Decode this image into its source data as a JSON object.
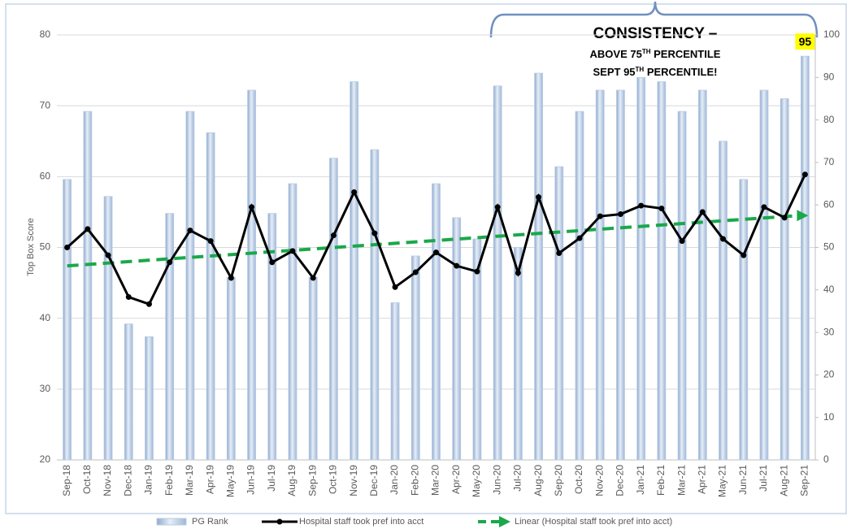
{
  "chart_data": {
    "type": "bar",
    "y_label": "Top Box Score",
    "categories": [
      "Sep-18",
      "Oct-18",
      "Nov-18",
      "Dec-18",
      "Jan-19",
      "Feb-19",
      "Mar-19",
      "Apr-19",
      "May-19",
      "Jun-19",
      "Jul-19",
      "Aug-19",
      "Sep-19",
      "Oct-19",
      "Nov-19",
      "Dec-19",
      "Jan-20",
      "Feb-20",
      "Mar-20",
      "Apr-20",
      "May-20",
      "Jun-20",
      "Jul-20",
      "Aug-20",
      "Sep-20",
      "Oct-20",
      "Nov-20",
      "Dec-20",
      "Jan-21",
      "Feb-21",
      "Mar-21",
      "Apr-21",
      "May-21",
      "Jun-21",
      "Jul-21",
      "Aug-21",
      "Sep-21"
    ],
    "series": [
      {
        "name": "PG Rank",
        "type": "bar",
        "axis": "y2",
        "color": "#b8cce4",
        "values": [
          66,
          82,
          62,
          32,
          29,
          58,
          82,
          77,
          43,
          87,
          58,
          65,
          43,
          71,
          89,
          73,
          37,
          48,
          65,
          57,
          52,
          88,
          50,
          91,
          69,
          82,
          87,
          87,
          90,
          89,
          82,
          87,
          75,
          66,
          87,
          85,
          95
        ]
      },
      {
        "name": "Hospital staff took pref into acct",
        "type": "line",
        "color": "#000000",
        "values": [
          50.0,
          52.6,
          48.9,
          43.0,
          42.0,
          47.9,
          52.4,
          50.9,
          45.7,
          55.7,
          47.9,
          49.5,
          45.7,
          51.7,
          57.8,
          52.0,
          44.4,
          46.5,
          49.3,
          47.4,
          46.6,
          55.7,
          46.4,
          57.1,
          49.2,
          51.3,
          54.4,
          54.7,
          55.9,
          55.5,
          50.9,
          55.0,
          51.2,
          48.9,
          55.7,
          54.2,
          60.3
        ]
      }
    ],
    "trendline": {
      "name": "Linear (Hospital staff took pref into acct)",
      "color": "#1aa84a",
      "start": 47.4,
      "end": 54.5
    },
    "ylim": [
      20,
      80
    ],
    "yticks": [
      20,
      30,
      40,
      50,
      60,
      70,
      80
    ],
    "y2lim": [
      0,
      100
    ],
    "y2ticks": [
      0,
      10,
      20,
      30,
      40,
      50,
      60,
      70,
      80,
      90,
      100
    ],
    "grid": true,
    "legend": "bottom",
    "annotation": {
      "title": "CONSISTENCY –",
      "lines": [
        [
          "ABOVE 75",
          "TH",
          " PERCENTILE"
        ],
        [
          "SEPT 95",
          "TH",
          " PERCENTILE!"
        ]
      ]
    }
  }
}
